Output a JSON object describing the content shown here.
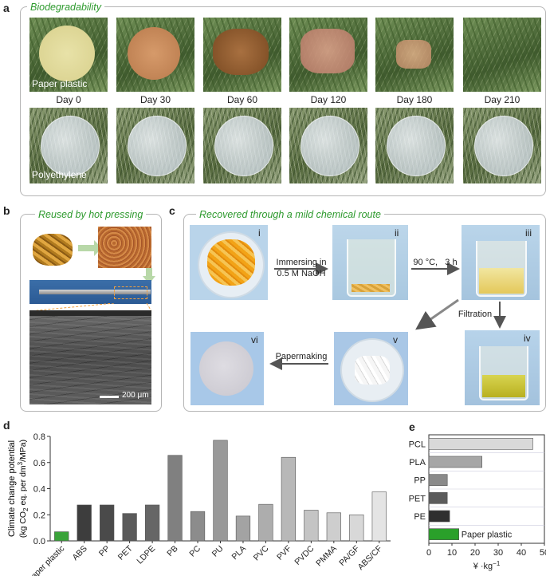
{
  "panels": {
    "a": {
      "letter": "a",
      "title": "Biodegradability",
      "row1_caption": "Paper plastic",
      "row2_caption": "Polyethylene",
      "days": [
        "Day 0",
        "Day 30",
        "Day 60",
        "Day 120",
        "Day 180",
        "Day 210"
      ]
    },
    "b": {
      "letter": "b",
      "title": "Reused by hot pressing",
      "scale_bar": "200 μm"
    },
    "c": {
      "letter": "c",
      "title": "Recovered through a mild chemical route",
      "steps": [
        "i",
        "ii",
        "iii",
        "iv",
        "v",
        "vi"
      ],
      "arrow1": [
        "Immersing in",
        "0.5 M NaOH"
      ],
      "arrow2": "90 °C,   3 h",
      "arrow3": "Filtration",
      "arrow4": "Papermaking"
    },
    "d": {
      "letter": "d"
    },
    "e": {
      "letter": "e"
    }
  },
  "chart_data": [
    {
      "type": "bar",
      "panel": "d",
      "categories": [
        "Paper plastic",
        "ABS",
        "PP",
        "PET",
        "LDPE",
        "PB",
        "PC",
        "PU",
        "PLA",
        "PVC",
        "PVF",
        "PVDC",
        "PMMA",
        "PA/GF",
        "ABS/CF"
      ],
      "values": [
        0.07,
        0.275,
        0.275,
        0.21,
        0.275,
        0.655,
        0.225,
        0.77,
        0.19,
        0.28,
        0.64,
        0.235,
        0.215,
        0.2,
        0.375
      ],
      "colors": [
        "#3aa33a",
        "#3d3d3d",
        "#4a4a4a",
        "#5a5a5a",
        "#666666",
        "#808080",
        "#8c8c8c",
        "#999999",
        "#a3a3a3",
        "#adadad",
        "#b8b8b8",
        "#c4c4c4",
        "#cecece",
        "#d8d8d8",
        "#e4e4e4"
      ],
      "ylabel_line1": "Climate change potential",
      "ylabel_line2": "(kg CO",
      "ylabel_sub": "2",
      "ylabel_line2b": " eq. per dm",
      "ylabel_sup": "3",
      "ylabel_line2c": "/MPa)",
      "ylim": [
        0,
        0.8
      ],
      "yticks": [
        "0.0",
        "0.2",
        "0.4",
        "0.6",
        "0.8"
      ]
    },
    {
      "type": "bar",
      "orientation": "horizontal",
      "panel": "e",
      "categories": [
        "PCL",
        "PLA",
        "PP",
        "PET",
        "PE",
        "Paper plastic"
      ],
      "values": [
        45,
        23,
        8,
        8,
        9,
        13
      ],
      "colors": [
        "#d9d9d9",
        "#a6a6a6",
        "#8a8a8a",
        "#5c5c5c",
        "#2f2f2f",
        "#2aa02a"
      ],
      "xlabel": "¥ ·kg",
      "xlabel_sup": "−1",
      "xlim": [
        0,
        50
      ],
      "xticks": [
        "0",
        "10",
        "20",
        "30",
        "40",
        "50"
      ]
    }
  ]
}
